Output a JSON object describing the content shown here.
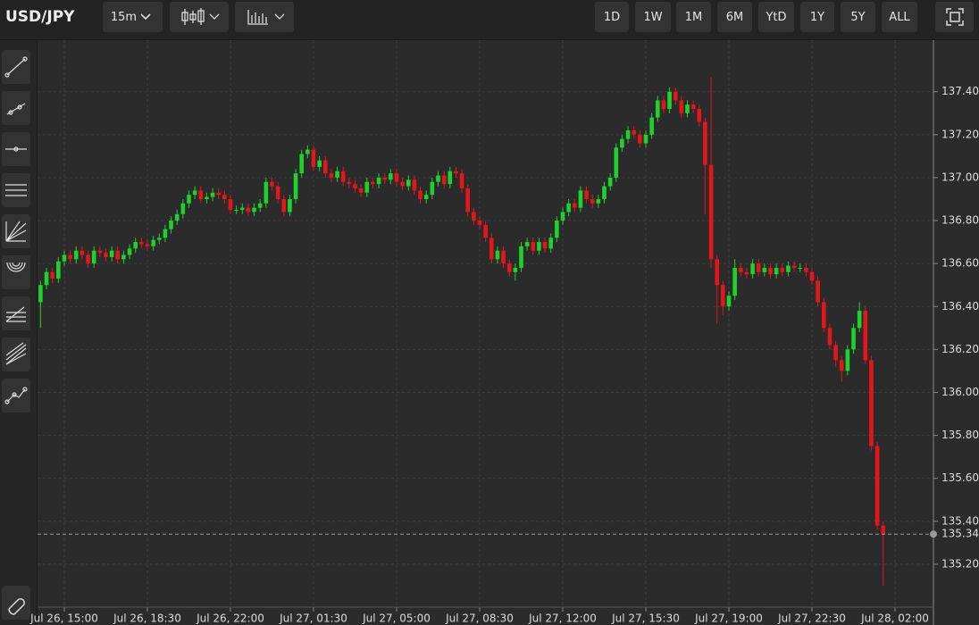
{
  "toolbar": {
    "symbol": "USD/JPY",
    "interval": "15m",
    "ranges": [
      "1D",
      "1W",
      "1M",
      "6M",
      "YtD",
      "1Y",
      "5Y",
      "ALL"
    ]
  },
  "chart_data": {
    "type": "candlestick",
    "categories": [
      null,
      null,
      null,
      null,
      "Jul 26, 15:00",
      null,
      null,
      null,
      null,
      null,
      null,
      null,
      null,
      null,
      null,
      null,
      null,
      null,
      "Jul 26, 18:30",
      null,
      null,
      null,
      null,
      null,
      null,
      null,
      null,
      null,
      null,
      null,
      null,
      null,
      "Jul 26, 22:00",
      null,
      null,
      null,
      null,
      null,
      null,
      null,
      null,
      null,
      null,
      null,
      null,
      null,
      "Jul 27, 01:30",
      null,
      null,
      null,
      null,
      null,
      null,
      null,
      null,
      null,
      null,
      null,
      null,
      null,
      "Jul 27, 05:00",
      null,
      null,
      null,
      null,
      null,
      null,
      null,
      null,
      null,
      null,
      null,
      null,
      null,
      "Jul 27, 08:30",
      null,
      null,
      null,
      null,
      null,
      null,
      null,
      null,
      null,
      null,
      null,
      null,
      null,
      "Jul 27, 12:00",
      null,
      null,
      null,
      null,
      null,
      null,
      null,
      null,
      null,
      null,
      null,
      null,
      null,
      "Jul 27, 15:30",
      null,
      null,
      null,
      null,
      null,
      null,
      null,
      null,
      null,
      null,
      null,
      null,
      null,
      "Jul 27, 19:00",
      null,
      null,
      null,
      null,
      null,
      null,
      null,
      null,
      null,
      null,
      null,
      null,
      null,
      "Jul 27, 22:30",
      null,
      null,
      null,
      null,
      null,
      null,
      null,
      null,
      null,
      null,
      null,
      null,
      null,
      "Jul 28, 02:00"
    ],
    "open": [
      136.42,
      136.5,
      136.56,
      136.53,
      136.61,
      136.64,
      136.62,
      136.66,
      136.64,
      136.6,
      136.66,
      136.65,
      136.63,
      136.66,
      136.62,
      136.64,
      136.67,
      136.7,
      136.69,
      136.68,
      136.71,
      136.72,
      136.76,
      136.8,
      136.83,
      136.88,
      136.92,
      136.94,
      136.9,
      136.91,
      136.93,
      136.92,
      136.9,
      136.85,
      136.85,
      136.86,
      136.84,
      136.86,
      136.88,
      136.98,
      136.96,
      136.9,
      136.84,
      136.9,
      137.02,
      137.11,
      137.13,
      137.05,
      137.08,
      137.02,
      137.0,
      137.03,
      136.98,
      136.97,
      136.95,
      136.93,
      136.98,
      136.97,
      137.0,
      136.99,
      137.02,
      136.98,
      136.96,
      136.99,
      136.94,
      136.9,
      136.92,
      136.98,
      137.01,
      136.97,
      137.03,
      137.02,
      136.95,
      136.84,
      136.8,
      136.78,
      136.72,
      136.62,
      136.66,
      136.6,
      136.56,
      136.58,
      136.68,
      136.7,
      136.66,
      136.7,
      136.67,
      136.72,
      136.8,
      136.84,
      136.88,
      136.86,
      136.94,
      136.9,
      136.88,
      136.9,
      136.96,
      137.0,
      137.14,
      137.18,
      137.22,
      137.2,
      137.16,
      137.2,
      137.28,
      137.36,
      137.32,
      137.4,
      137.36,
      137.3,
      137.34,
      137.32,
      137.26,
      137.06,
      136.62,
      136.5,
      136.4,
      136.45,
      136.58,
      136.56,
      136.55,
      136.6,
      136.56,
      136.58,
      136.55,
      136.58,
      136.56,
      136.59,
      136.58,
      136.58,
      136.56,
      136.52,
      136.42,
      136.3,
      136.22,
      136.15,
      136.1,
      136.2,
      136.3,
      136.38,
      136.15,
      135.75,
      135.38,
      null,
      null
    ],
    "high": [
      136.52,
      136.58,
      136.58,
      136.63,
      136.66,
      136.66,
      136.68,
      136.68,
      136.66,
      136.68,
      136.68,
      136.67,
      136.68,
      136.68,
      136.66,
      136.69,
      136.72,
      136.72,
      136.71,
      136.73,
      136.74,
      136.78,
      136.82,
      136.85,
      136.9,
      136.94,
      136.96,
      136.96,
      136.93,
      136.95,
      136.95,
      136.94,
      136.92,
      136.87,
      136.88,
      136.88,
      136.88,
      136.9,
      137.0,
      137.0,
      136.98,
      136.92,
      136.92,
      137.04,
      137.13,
      137.15,
      137.15,
      137.1,
      137.1,
      137.04,
      137.05,
      137.05,
      137.0,
      136.99,
      136.97,
      137.0,
      137.0,
      137.02,
      137.02,
      137.04,
      137.04,
      137.0,
      137.01,
      137.01,
      136.96,
      136.94,
      137.0,
      137.03,
      137.03,
      137.05,
      137.05,
      137.04,
      136.97,
      136.86,
      136.82,
      136.8,
      136.74,
      136.68,
      136.68,
      136.62,
      136.6,
      136.7,
      136.72,
      136.72,
      136.72,
      136.72,
      136.74,
      136.82,
      136.86,
      136.9,
      136.9,
      136.96,
      136.96,
      136.92,
      136.92,
      136.98,
      137.02,
      137.16,
      137.2,
      137.24,
      137.24,
      137.22,
      137.22,
      137.3,
      137.38,
      137.38,
      137.42,
      137.42,
      137.38,
      137.36,
      137.36,
      137.34,
      137.28,
      137.47,
      136.64,
      136.52,
      136.47,
      136.62,
      136.6,
      136.58,
      136.62,
      136.62,
      136.6,
      136.6,
      136.6,
      136.6,
      136.61,
      136.61,
      136.6,
      136.6,
      136.58,
      136.54,
      136.44,
      136.32,
      136.24,
      136.17,
      136.22,
      136.32,
      136.42,
      136.4,
      136.17,
      135.77,
      135.4,
      null,
      null
    ],
    "low": [
      136.3,
      136.48,
      136.51,
      136.51,
      136.59,
      136.6,
      136.6,
      136.62,
      136.58,
      136.58,
      136.63,
      136.61,
      136.61,
      136.6,
      136.6,
      136.62,
      136.65,
      136.67,
      136.66,
      136.66,
      136.69,
      136.7,
      136.74,
      136.78,
      136.81,
      136.86,
      136.9,
      136.88,
      136.88,
      136.89,
      136.9,
      136.88,
      136.83,
      136.83,
      136.83,
      136.82,
      136.82,
      136.84,
      136.86,
      136.94,
      136.88,
      136.82,
      136.82,
      136.88,
      137.0,
      137.09,
      137.03,
      137.03,
      137.0,
      136.98,
      136.98,
      136.96,
      136.95,
      136.93,
      136.91,
      136.91,
      136.95,
      136.95,
      136.97,
      136.97,
      136.96,
      136.94,
      136.94,
      136.92,
      136.88,
      136.88,
      136.9,
      136.96,
      136.95,
      136.95,
      137.0,
      136.93,
      136.82,
      136.78,
      136.76,
      136.7,
      136.6,
      136.6,
      136.58,
      136.54,
      136.52,
      136.56,
      136.66,
      136.64,
      136.64,
      136.65,
      136.65,
      136.7,
      136.78,
      136.82,
      136.84,
      136.84,
      136.88,
      136.86,
      136.86,
      136.88,
      136.94,
      136.98,
      137.12,
      137.16,
      137.18,
      137.14,
      137.14,
      137.18,
      137.26,
      137.3,
      137.3,
      137.34,
      137.28,
      137.28,
      137.3,
      137.24,
      136.83,
      136.58,
      136.32,
      136.36,
      136.38,
      136.43,
      136.54,
      136.53,
      136.53,
      136.54,
      136.54,
      136.53,
      136.53,
      136.54,
      136.54,
      136.56,
      136.56,
      136.54,
      136.5,
      136.4,
      136.28,
      136.2,
      136.12,
      136.05,
      136.08,
      136.18,
      136.28,
      136.13,
      135.73,
      135.36,
      135.1,
      null,
      null
    ],
    "close": [
      136.5,
      136.56,
      136.53,
      136.61,
      136.64,
      136.62,
      136.66,
      136.64,
      136.6,
      136.66,
      136.65,
      136.63,
      136.66,
      136.62,
      136.64,
      136.67,
      136.7,
      136.69,
      136.68,
      136.71,
      136.72,
      136.76,
      136.8,
      136.83,
      136.88,
      136.92,
      136.94,
      136.9,
      136.91,
      136.93,
      136.92,
      136.9,
      136.85,
      136.85,
      136.86,
      136.84,
      136.86,
      136.88,
      136.98,
      136.96,
      136.9,
      136.84,
      136.9,
      137.02,
      137.11,
      137.13,
      137.05,
      137.08,
      137.02,
      137.0,
      137.03,
      136.98,
      136.97,
      136.95,
      136.93,
      136.98,
      136.97,
      137.0,
      136.99,
      137.02,
      136.98,
      136.96,
      136.99,
      136.94,
      136.9,
      136.92,
      136.98,
      137.01,
      136.97,
      137.03,
      137.02,
      136.95,
      136.84,
      136.8,
      136.78,
      136.72,
      136.62,
      136.66,
      136.6,
      136.56,
      136.58,
      136.68,
      136.7,
      136.66,
      136.7,
      136.67,
      136.72,
      136.8,
      136.84,
      136.88,
      136.86,
      136.94,
      136.9,
      136.88,
      136.9,
      136.96,
      137.0,
      137.14,
      137.18,
      137.22,
      137.2,
      137.16,
      137.2,
      137.28,
      137.36,
      137.32,
      137.4,
      137.36,
      137.3,
      137.34,
      137.32,
      137.26,
      137.06,
      136.62,
      136.5,
      136.4,
      136.45,
      136.58,
      136.56,
      136.55,
      136.6,
      136.56,
      136.58,
      136.55,
      136.58,
      136.56,
      136.59,
      136.58,
      136.58,
      136.56,
      136.52,
      136.42,
      136.3,
      136.22,
      136.15,
      136.1,
      136.2,
      136.3,
      136.38,
      136.15,
      135.75,
      135.38,
      135.34,
      null,
      null
    ],
    "up_color": "#1fd12c",
    "down_color": "#e3161c",
    "ylim": [
      135.0,
      137.64
    ],
    "yticks": [
      {
        "value": 135.2,
        "label": "135.20"
      },
      {
        "value": 135.4,
        "label": "135.40"
      },
      {
        "value": 135.6,
        "label": "135.60"
      },
      {
        "value": 135.8,
        "label": "135.80"
      },
      {
        "value": 136.0,
        "label": "136.00"
      },
      {
        "value": 136.2,
        "label": "136.20"
      },
      {
        "value": 136.4,
        "label": "136.40"
      },
      {
        "value": 136.6,
        "label": "136.60"
      },
      {
        "value": 136.8,
        "label": "136.80"
      },
      {
        "value": 137.0,
        "label": "137.00"
      },
      {
        "value": 137.2,
        "label": "137.20"
      },
      {
        "value": 137.4,
        "label": "137.40"
      }
    ],
    "grid": true
  }
}
